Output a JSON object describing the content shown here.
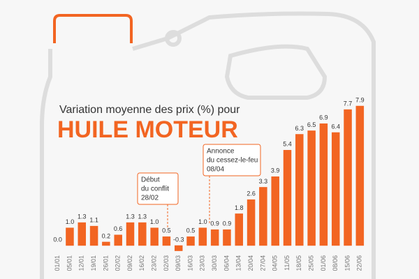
{
  "chart_data": {
    "type": "bar",
    "title": "Variation moyenne des prix (%) pour",
    "subtitle": "HUILE MOTEUR",
    "color": "#f26522",
    "categories": [
      "01/01",
      "05/01",
      "12/01",
      "19/01",
      "26/01",
      "02/02",
      "09/02",
      "16/02",
      "23/02",
      "02/03",
      "09/03",
      "16/03",
      "23/03",
      "30/03",
      "06/04",
      "13/04",
      "20/04",
      "27/04",
      "04/05",
      "11/05",
      "18/05",
      "25/05",
      "01/06",
      "08/06",
      "15/06",
      "22/06"
    ],
    "values": [
      0.0,
      1.0,
      1.3,
      1.1,
      0.2,
      0.6,
      1.3,
      1.3,
      1.0,
      0.5,
      -0.3,
      0.5,
      1.0,
      0.9,
      0.9,
      1.8,
      2.6,
      3.3,
      3.9,
      5.4,
      6.3,
      6.5,
      6.9,
      6.4,
      7.7,
      7.9
    ],
    "value_labels": [
      "0.0",
      "1.0",
      "1.3",
      "1.1",
      "0.2",
      "0.6",
      "1.3",
      "1.3",
      "1.0",
      "0.5",
      "-0.3",
      "0.5",
      "1.0",
      "0.9",
      "0.9",
      "1.8",
      "2.6",
      "3.3",
      "3.9",
      "5.4",
      "6.3",
      "6.5",
      "6.9",
      "6.4",
      "7.7",
      "7.9"
    ],
    "annotations": [
      {
        "lines": [
          "Début",
          "du conflit",
          "28/02"
        ]
      },
      {
        "lines": [
          "Annonce",
          "du cessez-le-feu",
          "08/04"
        ]
      }
    ]
  }
}
